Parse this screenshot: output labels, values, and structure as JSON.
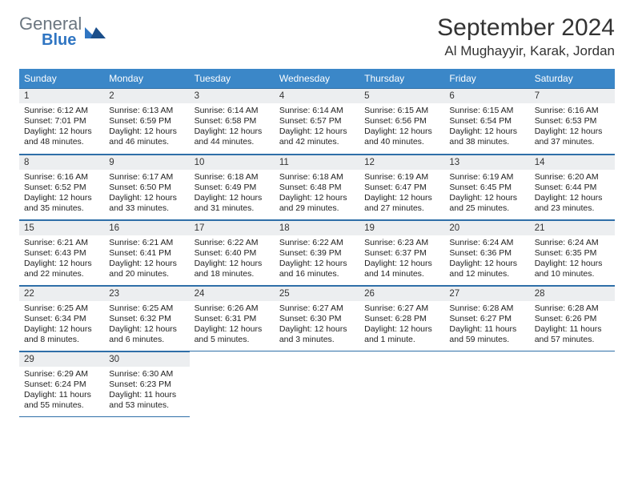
{
  "brand": {
    "word1": "General",
    "word2": "Blue"
  },
  "title": {
    "month": "September 2024",
    "location": "Al Mughayyir, Karak, Jordan"
  },
  "colors": {
    "header_bg": "#3b87c8",
    "header_text": "#ffffff",
    "rule": "#2f6fa8",
    "daynum_bg": "#eceef0",
    "logo_gray": "#6b7680",
    "logo_blue": "#2f75c2",
    "page_bg": "#ffffff"
  },
  "day_headers": [
    "Sunday",
    "Monday",
    "Tuesday",
    "Wednesday",
    "Thursday",
    "Friday",
    "Saturday"
  ],
  "weeks": [
    [
      {
        "n": "1",
        "sr": "6:12 AM",
        "ss": "7:01 PM",
        "dl": "12 hours and 48 minutes."
      },
      {
        "n": "2",
        "sr": "6:13 AM",
        "ss": "6:59 PM",
        "dl": "12 hours and 46 minutes."
      },
      {
        "n": "3",
        "sr": "6:14 AM",
        "ss": "6:58 PM",
        "dl": "12 hours and 44 minutes."
      },
      {
        "n": "4",
        "sr": "6:14 AM",
        "ss": "6:57 PM",
        "dl": "12 hours and 42 minutes."
      },
      {
        "n": "5",
        "sr": "6:15 AM",
        "ss": "6:56 PM",
        "dl": "12 hours and 40 minutes."
      },
      {
        "n": "6",
        "sr": "6:15 AM",
        "ss": "6:54 PM",
        "dl": "12 hours and 38 minutes."
      },
      {
        "n": "7",
        "sr": "6:16 AM",
        "ss": "6:53 PM",
        "dl": "12 hours and 37 minutes."
      }
    ],
    [
      {
        "n": "8",
        "sr": "6:16 AM",
        "ss": "6:52 PM",
        "dl": "12 hours and 35 minutes."
      },
      {
        "n": "9",
        "sr": "6:17 AM",
        "ss": "6:50 PM",
        "dl": "12 hours and 33 minutes."
      },
      {
        "n": "10",
        "sr": "6:18 AM",
        "ss": "6:49 PM",
        "dl": "12 hours and 31 minutes."
      },
      {
        "n": "11",
        "sr": "6:18 AM",
        "ss": "6:48 PM",
        "dl": "12 hours and 29 minutes."
      },
      {
        "n": "12",
        "sr": "6:19 AM",
        "ss": "6:47 PM",
        "dl": "12 hours and 27 minutes."
      },
      {
        "n": "13",
        "sr": "6:19 AM",
        "ss": "6:45 PM",
        "dl": "12 hours and 25 minutes."
      },
      {
        "n": "14",
        "sr": "6:20 AM",
        "ss": "6:44 PM",
        "dl": "12 hours and 23 minutes."
      }
    ],
    [
      {
        "n": "15",
        "sr": "6:21 AM",
        "ss": "6:43 PM",
        "dl": "12 hours and 22 minutes."
      },
      {
        "n": "16",
        "sr": "6:21 AM",
        "ss": "6:41 PM",
        "dl": "12 hours and 20 minutes."
      },
      {
        "n": "17",
        "sr": "6:22 AM",
        "ss": "6:40 PM",
        "dl": "12 hours and 18 minutes."
      },
      {
        "n": "18",
        "sr": "6:22 AM",
        "ss": "6:39 PM",
        "dl": "12 hours and 16 minutes."
      },
      {
        "n": "19",
        "sr": "6:23 AM",
        "ss": "6:37 PM",
        "dl": "12 hours and 14 minutes."
      },
      {
        "n": "20",
        "sr": "6:24 AM",
        "ss": "6:36 PM",
        "dl": "12 hours and 12 minutes."
      },
      {
        "n": "21",
        "sr": "6:24 AM",
        "ss": "6:35 PM",
        "dl": "12 hours and 10 minutes."
      }
    ],
    [
      {
        "n": "22",
        "sr": "6:25 AM",
        "ss": "6:34 PM",
        "dl": "12 hours and 8 minutes."
      },
      {
        "n": "23",
        "sr": "6:25 AM",
        "ss": "6:32 PM",
        "dl": "12 hours and 6 minutes."
      },
      {
        "n": "24",
        "sr": "6:26 AM",
        "ss": "6:31 PM",
        "dl": "12 hours and 5 minutes."
      },
      {
        "n": "25",
        "sr": "6:27 AM",
        "ss": "6:30 PM",
        "dl": "12 hours and 3 minutes."
      },
      {
        "n": "26",
        "sr": "6:27 AM",
        "ss": "6:28 PM",
        "dl": "12 hours and 1 minute."
      },
      {
        "n": "27",
        "sr": "6:28 AM",
        "ss": "6:27 PM",
        "dl": "11 hours and 59 minutes."
      },
      {
        "n": "28",
        "sr": "6:28 AM",
        "ss": "6:26 PM",
        "dl": "11 hours and 57 minutes."
      }
    ],
    [
      {
        "n": "29",
        "sr": "6:29 AM",
        "ss": "6:24 PM",
        "dl": "11 hours and 55 minutes."
      },
      {
        "n": "30",
        "sr": "6:30 AM",
        "ss": "6:23 PM",
        "dl": "11 hours and 53 minutes."
      },
      null,
      null,
      null,
      null,
      null
    ]
  ],
  "labels": {
    "sunrise": "Sunrise:",
    "sunset": "Sunset:",
    "daylight": "Daylight:"
  }
}
